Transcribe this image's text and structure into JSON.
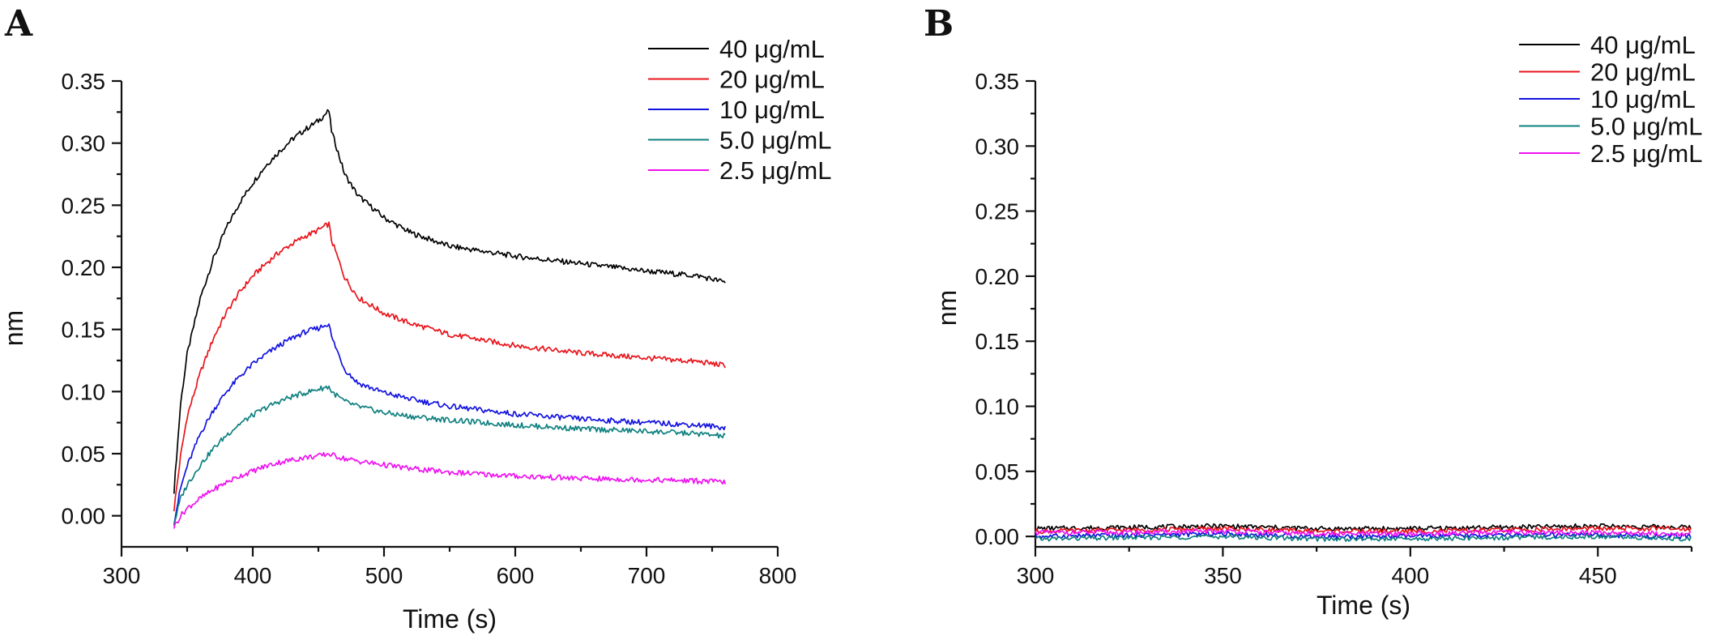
{
  "chart_data": [
    {
      "panel": "A",
      "type": "line",
      "xlabel": "Time (s)",
      "ylabel": "nm",
      "xlim": [
        300,
        800
      ],
      "ylim": [
        -0.025,
        0.35
      ],
      "xticks": [
        300,
        400,
        500,
        600,
        700,
        800
      ],
      "yticks": [
        0.0,
        0.05,
        0.1,
        0.15,
        0.2,
        0.25,
        0.3,
        0.35
      ],
      "ytick_labels": [
        "0.00",
        "0.05",
        "0.10",
        "0.15",
        "0.20",
        "0.25",
        "0.30",
        "0.35"
      ],
      "legend_position": "top-right",
      "series": [
        {
          "name": "40 μg/mL",
          "color": "#000000",
          "x": [
            340,
            345,
            350,
            360,
            370,
            380,
            390,
            400,
            410,
            420,
            430,
            440,
            450,
            458,
            460,
            470,
            480,
            500,
            520,
            550,
            600,
            650,
            700,
            740,
            760
          ],
          "y": [
            0.02,
            0.09,
            0.13,
            0.175,
            0.207,
            0.232,
            0.252,
            0.268,
            0.282,
            0.293,
            0.303,
            0.311,
            0.318,
            0.326,
            0.31,
            0.275,
            0.258,
            0.24,
            0.228,
            0.217,
            0.209,
            0.203,
            0.197,
            0.193,
            0.188
          ]
        },
        {
          "name": "20 μg/mL",
          "color": "#e8141b",
          "x": [
            340,
            345,
            350,
            360,
            370,
            380,
            390,
            400,
            410,
            420,
            430,
            440,
            450,
            458,
            460,
            470,
            480,
            500,
            520,
            550,
            600,
            650,
            700,
            740,
            760
          ],
          "y": [
            0.005,
            0.048,
            0.08,
            0.115,
            0.143,
            0.164,
            0.18,
            0.193,
            0.203,
            0.212,
            0.219,
            0.225,
            0.23,
            0.235,
            0.222,
            0.192,
            0.176,
            0.163,
            0.155,
            0.146,
            0.137,
            0.131,
            0.127,
            0.124,
            0.121
          ]
        },
        {
          "name": "10 μg/mL",
          "color": "#1212e0",
          "x": [
            340,
            345,
            350,
            360,
            370,
            380,
            390,
            400,
            410,
            420,
            430,
            440,
            450,
            458,
            460,
            470,
            480,
            500,
            520,
            550,
            600,
            650,
            700,
            740,
            760
          ],
          "y": [
            -0.005,
            0.022,
            0.04,
            0.066,
            0.085,
            0.1,
            0.112,
            0.122,
            0.13,
            0.137,
            0.143,
            0.148,
            0.151,
            0.155,
            0.144,
            0.118,
            0.107,
            0.099,
            0.094,
            0.088,
            0.082,
            0.078,
            0.075,
            0.073,
            0.071
          ]
        },
        {
          "name": "5.0 μg/mL",
          "color": "#0f8080",
          "x": [
            340,
            345,
            350,
            360,
            370,
            380,
            390,
            400,
            410,
            420,
            430,
            440,
            450,
            458,
            460,
            470,
            480,
            500,
            520,
            550,
            600,
            650,
            700,
            740,
            760
          ],
          "y": [
            -0.007,
            0.014,
            0.025,
            0.041,
            0.054,
            0.065,
            0.074,
            0.081,
            0.087,
            0.092,
            0.096,
            0.099,
            0.102,
            0.104,
            0.1,
            0.092,
            0.088,
            0.083,
            0.08,
            0.077,
            0.073,
            0.07,
            0.068,
            0.066,
            0.064
          ]
        },
        {
          "name": "2.5 μg/mL",
          "color": "#ee12ee",
          "x": [
            340,
            345,
            350,
            360,
            370,
            380,
            390,
            400,
            410,
            420,
            430,
            440,
            450,
            458,
            460,
            470,
            480,
            500,
            520,
            550,
            600,
            650,
            700,
            740,
            760
          ],
          "y": [
            -0.009,
            0.0,
            0.006,
            0.014,
            0.021,
            0.027,
            0.032,
            0.036,
            0.04,
            0.043,
            0.045,
            0.047,
            0.048,
            0.05,
            0.049,
            0.046,
            0.044,
            0.041,
            0.038,
            0.035,
            0.032,
            0.03,
            0.029,
            0.028,
            0.027
          ]
        }
      ]
    },
    {
      "panel": "B",
      "type": "line",
      "xlabel": "Time (s)",
      "ylabel": "nm",
      "xlim": [
        300,
        475
      ],
      "ylim": [
        -0.008,
        0.35
      ],
      "xticks": [
        300,
        350,
        400,
        450
      ],
      "yticks": [
        0.0,
        0.05,
        0.1,
        0.15,
        0.2,
        0.25,
        0.3,
        0.35
      ],
      "ytick_labels": [
        "0.00",
        "0.05",
        "0.10",
        "0.15",
        "0.20",
        "0.25",
        "0.30",
        "0.35"
      ],
      "legend_position": "top-right",
      "series": [
        {
          "name": "40 μg/mL",
          "color": "#000000",
          "x": [
            300,
            325,
            350,
            375,
            400,
            425,
            450,
            475
          ],
          "y": [
            0.006,
            0.007,
            0.008,
            0.006,
            0.006,
            0.007,
            0.008,
            0.007
          ]
        },
        {
          "name": "20 μg/mL",
          "color": "#e8141b",
          "x": [
            300,
            325,
            350,
            375,
            400,
            425,
            450,
            475
          ],
          "y": [
            0.004,
            0.005,
            0.006,
            0.004,
            0.004,
            0.005,
            0.006,
            0.006
          ]
        },
        {
          "name": "10 μg/mL",
          "color": "#1212e0",
          "x": [
            300,
            325,
            350,
            375,
            400,
            425,
            450,
            475
          ],
          "y": [
            0.0,
            0.001,
            0.002,
            0.0,
            0.0,
            0.001,
            0.001,
            0.0
          ]
        },
        {
          "name": "5.0 μg/mL",
          "color": "#0f8080",
          "x": [
            300,
            325,
            350,
            375,
            400,
            425,
            450,
            475
          ],
          "y": [
            -0.002,
            -0.001,
            0.0,
            -0.002,
            -0.002,
            -0.001,
            0.0,
            -0.002
          ]
        },
        {
          "name": "2.5 μg/mL",
          "color": "#ee12ee",
          "x": [
            300,
            325,
            350,
            375,
            400,
            425,
            450,
            475
          ],
          "y": [
            0.003,
            0.003,
            0.004,
            0.002,
            0.002,
            0.003,
            0.003,
            0.002
          ]
        }
      ]
    }
  ]
}
